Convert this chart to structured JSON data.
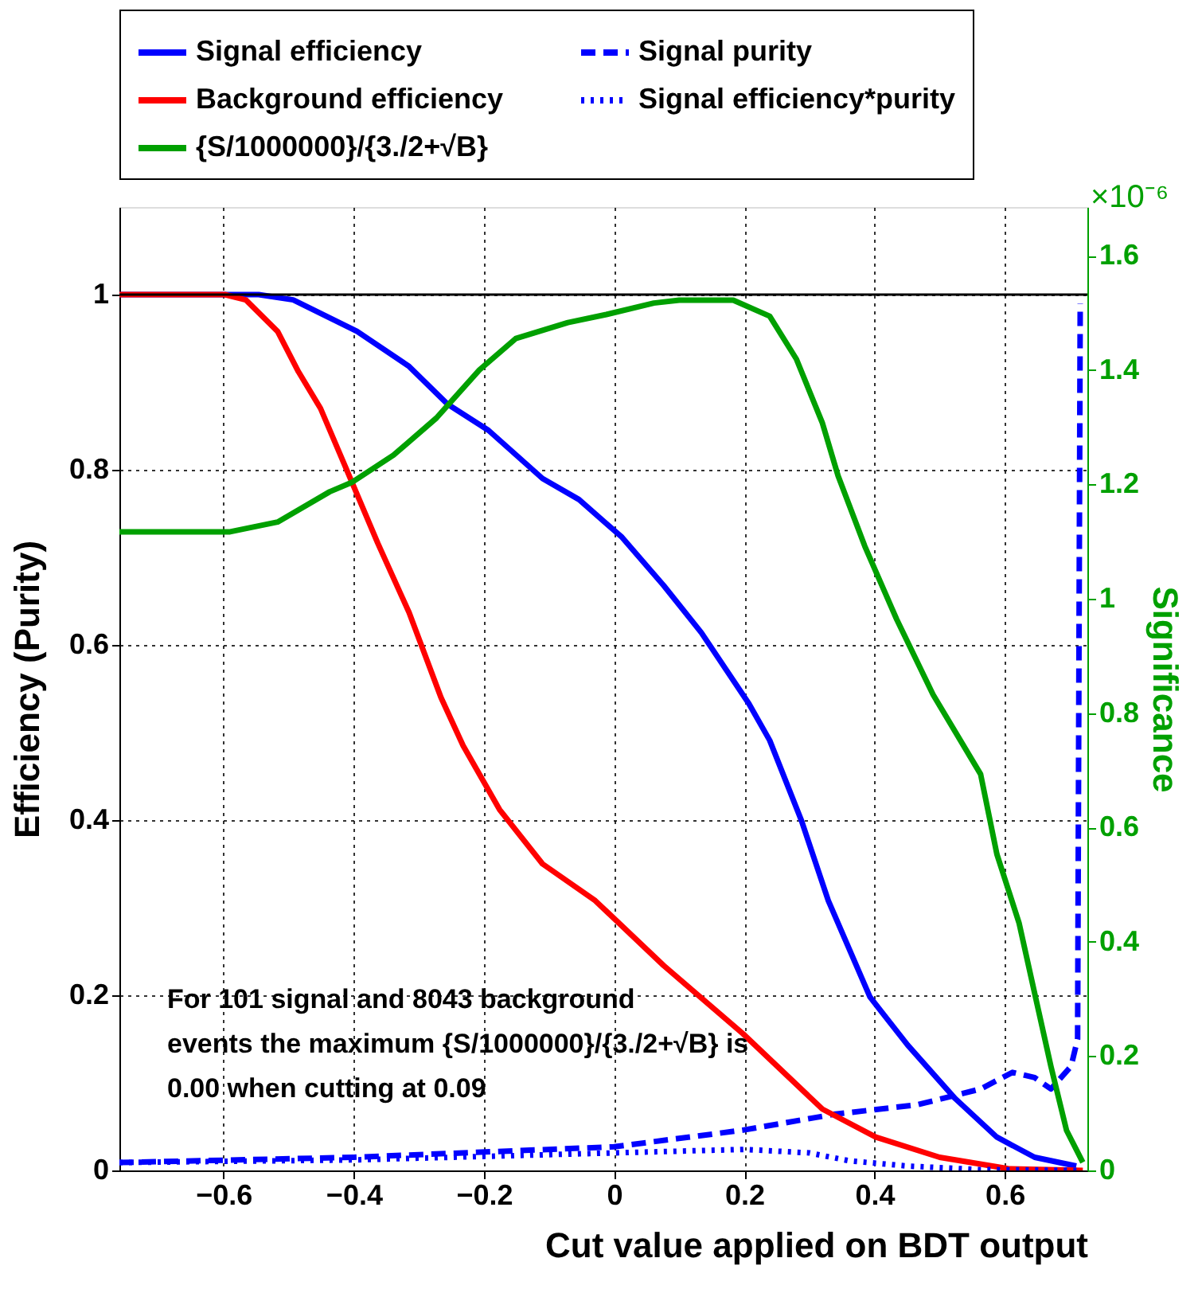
{
  "chart_data": {
    "type": "line",
    "xlabel": "Cut value applied on BDT output",
    "ylabel": "Efficiency (Purity)",
    "y2label": "Significance",
    "xlim": [
      -0.76,
      0.727
    ],
    "xticks": [
      -0.6,
      -0.4,
      -0.2,
      0,
      0.2,
      0.4,
      0.6
    ],
    "ylim": [
      0,
      1.1
    ],
    "yticks": [
      0,
      0.2,
      0.4,
      0.6,
      0.8,
      1
    ],
    "y2lim": [
      0,
      1.685
    ],
    "y2ticks": [
      0,
      0.2,
      0.4,
      0.6,
      0.8,
      1,
      1.2,
      1.4,
      1.6
    ],
    "grid": true,
    "legend": "top",
    "series": [
      {
        "name": "Signal efficiency",
        "color": "#0000ff",
        "line_style": "solid",
        "x": [
          -0.76,
          -0.546,
          -0.493,
          -0.395,
          -0.315,
          -0.256,
          -0.193,
          -0.11,
          -0.054,
          0.012,
          0.076,
          0.134,
          0.207,
          0.239,
          0.288,
          0.329,
          0.393,
          0.451,
          0.524,
          0.588,
          0.646,
          0.71
        ],
        "values": [
          1,
          1,
          0.994,
          0.958,
          0.918,
          0.875,
          0.845,
          0.79,
          0.766,
          0.723,
          0.668,
          0.614,
          0.533,
          0.491,
          0.399,
          0.308,
          0.198,
          0.143,
          0.082,
          0.038,
          0.015,
          0.005
        ]
      },
      {
        "name": "Signal purity",
        "color": "#0000ff",
        "line_style": "dashed",
        "x": [
          -0.76,
          -0.4,
          0,
          0.198,
          0.337,
          0.466,
          0.563,
          0.612,
          0.646,
          0.671,
          0.702,
          0.712,
          0.716
        ],
        "values": [
          0.009,
          0.015,
          0.027,
          0.046,
          0.064,
          0.075,
          0.093,
          0.112,
          0.106,
          0.093,
          0.119,
          0.15,
          0.99
        ]
      },
      {
        "name": "Background efficiency",
        "color": "#ff0000",
        "line_style": "solid",
        "x": [
          -0.76,
          -0.598,
          -0.566,
          -0.517,
          -0.485,
          -0.451,
          -0.412,
          -0.363,
          -0.315,
          -0.266,
          -0.232,
          -0.176,
          -0.11,
          -0.029,
          0.076,
          0.198,
          0.32,
          0.402,
          0.5,
          0.605,
          0.72
        ],
        "values": [
          1,
          1,
          0.994,
          0.958,
          0.912,
          0.87,
          0.802,
          0.716,
          0.637,
          0.54,
          0.485,
          0.412,
          0.35,
          0.308,
          0.234,
          0.156,
          0.07,
          0.038,
          0.015,
          0.002,
          0
        ]
      },
      {
        "name": "Signal efficiency*purity",
        "color": "#0000ff",
        "line_style": "dotted",
        "x": [
          -0.76,
          -0.4,
          0,
          0.2,
          0.3,
          0.361,
          0.451,
          0.56,
          0.72
        ],
        "values": [
          0.009,
          0.012,
          0.02,
          0.024,
          0.02,
          0.011,
          0.005,
          0.001,
          0
        ]
      },
      {
        "name": "{S/1000000}/{3./2+√B}",
        "color": "#00a000",
        "line_style": "solid",
        "axis": "y2",
        "x": [
          -0.76,
          -0.59,
          -0.517,
          -0.437,
          -0.402,
          -0.339,
          -0.273,
          -0.207,
          -0.151,
          -0.071,
          -0.012,
          0.061,
          0.1,
          0.183,
          0.239,
          0.28,
          0.32,
          0.344,
          0.385,
          0.434,
          0.49,
          0.563,
          0.588,
          0.622,
          0.646,
          0.671,
          0.695,
          0.72
        ],
        "values": [
          1.117,
          1.117,
          1.134,
          1.187,
          1.204,
          1.251,
          1.316,
          1.4,
          1.455,
          1.483,
          1.497,
          1.517,
          1.522,
          1.522,
          1.494,
          1.419,
          1.307,
          1.215,
          1.092,
          0.964,
          0.832,
          0.693,
          0.553,
          0.433,
          0.31,
          0.182,
          0.07,
          0.014
        ]
      }
    ],
    "ref_lines": [
      {
        "axis": "y",
        "value": 1,
        "color": "#000000",
        "line_style": "solid"
      }
    ],
    "annotations": [
      "For 101 signal and 8043 background\nevents the maximum {S/1000000}/{3./2+√B} is\n0.00 when cutting at  0.09",
      "×10⁻⁶"
    ]
  }
}
